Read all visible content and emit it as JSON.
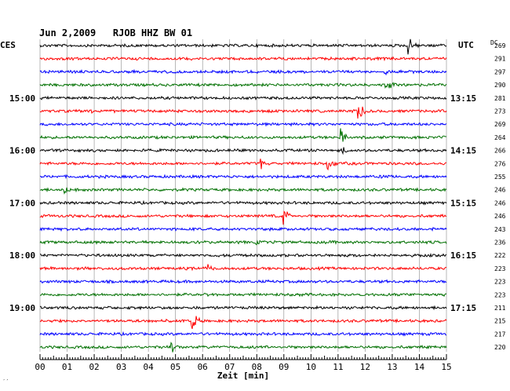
{
  "header": {
    "title": "Jun 2,2009   RJOB HHZ BW 01",
    "left_zone": "CES",
    "right_zone": "UTC",
    "dc_label": "DC"
  },
  "chart_data": {
    "type": "line",
    "title": "Jun 2,2009   RJOB HHZ BW 01",
    "xlabel": "Zeit [min]",
    "xlim": [
      0,
      15
    ],
    "x_tick_labels": [
      "00",
      "01",
      "02",
      "03",
      "04",
      "05",
      "06",
      "07",
      "08",
      "09",
      "10",
      "11",
      "12",
      "13",
      "14",
      "15"
    ],
    "trace_count": 24,
    "traces_per_hour": 4,
    "trace_colors": [
      "#000000",
      "#ff0000",
      "#0000ff",
      "#007000"
    ],
    "left_time_labels": [
      "15:00",
      "16:00",
      "17:00",
      "18:00",
      "19:00"
    ],
    "right_time_labels": [
      "13:15",
      "14:15",
      "15:15",
      "16:15",
      "17:15"
    ],
    "time_label_every_n_traces": 4,
    "time_label_first_trace": 4,
    "dc_offsets": [
      269,
      291,
      297,
      290,
      281,
      273,
      269,
      264,
      266,
      276,
      255,
      246,
      246,
      246,
      243,
      236,
      222,
      223,
      223,
      223,
      211,
      215,
      217,
      220
    ],
    "events": [
      {
        "trace": 0,
        "minute": 13.6,
        "amplitude": 12
      },
      {
        "trace": 2,
        "minute": 12.7,
        "amplitude": 5
      },
      {
        "trace": 3,
        "minute": 12.6,
        "amplitude": 7
      },
      {
        "trace": 3,
        "minute": 12.9,
        "amplitude": 5
      },
      {
        "trace": 5,
        "minute": 11.75,
        "amplitude": 14
      },
      {
        "trace": 5,
        "minute": 1.8,
        "amplitude": 4
      },
      {
        "trace": 7,
        "minute": 11.1,
        "amplitude": 12
      },
      {
        "trace": 8,
        "minute": 11.15,
        "amplitude": 6
      },
      {
        "trace": 9,
        "minute": 8.15,
        "amplitude": 8
      },
      {
        "trace": 9,
        "minute": 10.6,
        "amplitude": 9
      },
      {
        "trace": 10,
        "minute": 12.6,
        "amplitude": 3
      },
      {
        "trace": 11,
        "minute": 0.9,
        "amplitude": 6
      },
      {
        "trace": 13,
        "minute": 9.0,
        "amplitude": 12
      },
      {
        "trace": 15,
        "minute": 7.95,
        "amplitude": 4
      },
      {
        "trace": 15,
        "minute": 10.8,
        "amplitude": 3
      },
      {
        "trace": 17,
        "minute": 6.2,
        "amplitude": 5
      },
      {
        "trace": 19,
        "minute": 6.1,
        "amplitude": 3
      },
      {
        "trace": 21,
        "minute": 5.6,
        "amplitude": 16
      },
      {
        "trace": 23,
        "minute": 4.85,
        "amplitude": 12
      }
    ],
    "grid": true
  },
  "footer": {
    "mark": "′′"
  }
}
